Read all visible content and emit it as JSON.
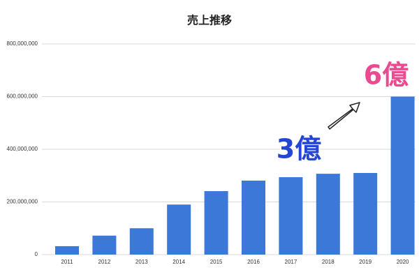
{
  "chart_data": {
    "type": "bar",
    "title": "売上推移",
    "categories": [
      "2011",
      "2012",
      "2013",
      "2014",
      "2015",
      "2016",
      "2017",
      "2018",
      "2019",
      "2020"
    ],
    "values": [
      32000000,
      72000000,
      100000000,
      190000000,
      241000000,
      281000000,
      294000000,
      307000000,
      310000000,
      600000000
    ],
    "color": "#3c78d8",
    "ylim": [
      0,
      800000000
    ],
    "yticks": [
      0,
      {
        "value": 200000000,
        "label": "200,000,000"
      },
      {
        "value": 400000000,
        "label": "400,000,000"
      },
      {
        "value": 600000000,
        "label": "600,000,000"
      },
      {
        "value": 800000000,
        "label": "800,000,000"
      }
    ],
    "grid": true,
    "annotations": [
      {
        "text": "3億",
        "color": "#2546d4"
      },
      {
        "text": "6億",
        "color": "#ea4a8f"
      }
    ]
  }
}
